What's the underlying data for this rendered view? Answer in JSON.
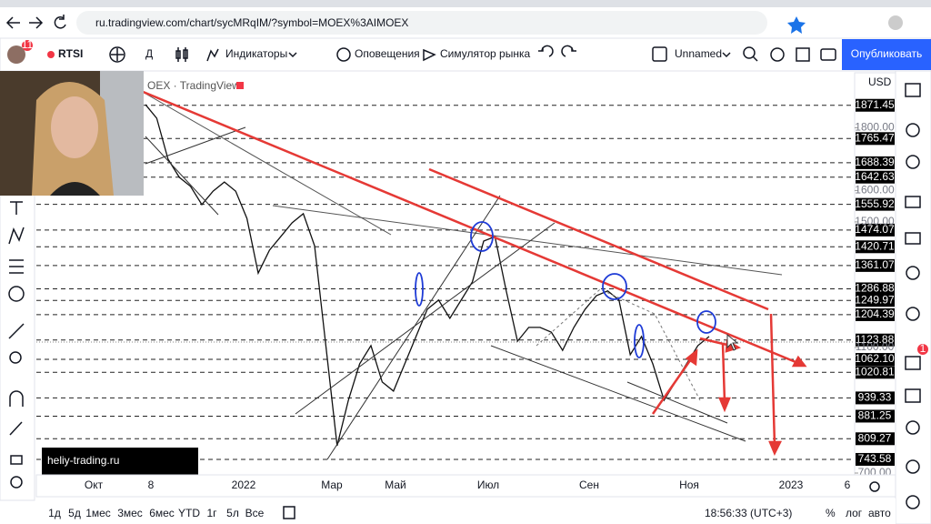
{
  "browser": {
    "url": "ru.tradingview.com/chart/sycMRqIM/?symbol=MOEX%3AIMOEX"
  },
  "toolbar": {
    "badge": "11",
    "symbol": "RTSI",
    "interval": "Д",
    "indicators": "Индикаторы",
    "alerts": "Оповещения",
    "replay": "Симулятор рынка",
    "layout_name": "Unnamed",
    "publish": "Опубликовать"
  },
  "chart": {
    "legend": "OEX · TradingView",
    "watermark": "heliy-trading.ru",
    "currency": "USD",
    "ylim": [
      700,
      1975
    ],
    "yticks": [
      {
        "value": 1800,
        "label": "1800.00"
      },
      {
        "value": 1600,
        "label": "1600.00"
      },
      {
        "value": 1500,
        "label": "1500.00"
      },
      {
        "value": 1100,
        "label": "1100.00"
      },
      {
        "value": 700,
        "label": "700.00"
      }
    ],
    "levels": [
      1871.45,
      1765.47,
      1688.39,
      1642.63,
      1555.92,
      1474.07,
      1420.71,
      1361.07,
      1286.88,
      1249.97,
      1204.39,
      1123.88,
      {
        "value": 1062.1,
        "label": "1062.10"
      },
      1020.81,
      939.33,
      881.25,
      809.27,
      743.58
    ],
    "price_series": {
      "values": [
        1874,
        1830,
        1700,
        1642,
        1613,
        1555,
        1598,
        1627,
        1598,
        1511,
        1337,
        1410,
        1453,
        1497,
        1526,
        1424,
        1106,
        787,
        932,
        1048,
        1106,
        990,
        961,
        1048,
        1135,
        1222,
        1251,
        1193,
        1251,
        1309,
        1439,
        1453,
        1280,
        1120,
        1164,
        1164,
        1149,
        1091,
        1164,
        1222,
        1265,
        1280,
        1251,
        1077,
        1135,
        1048,
        932,
        990,
        1048,
        1106,
        1135
      ]
    },
    "time_labels": [
      "Окт",
      "8",
      "2022",
      "Мар",
      "Май",
      "Июл",
      "Сен",
      "Ноя",
      "2023",
      "6"
    ]
  },
  "sidebar": {
    "badge": "1"
  },
  "bottom_bar": {
    "ranges": [
      "1д",
      "5д",
      "1мес",
      "3мес",
      "6мес",
      "YTD",
      "1г",
      "5л",
      "Все"
    ],
    "time": "18:56:33 (UTC+3)",
    "percent": "%",
    "log": "лог",
    "auto": "авто"
  }
}
